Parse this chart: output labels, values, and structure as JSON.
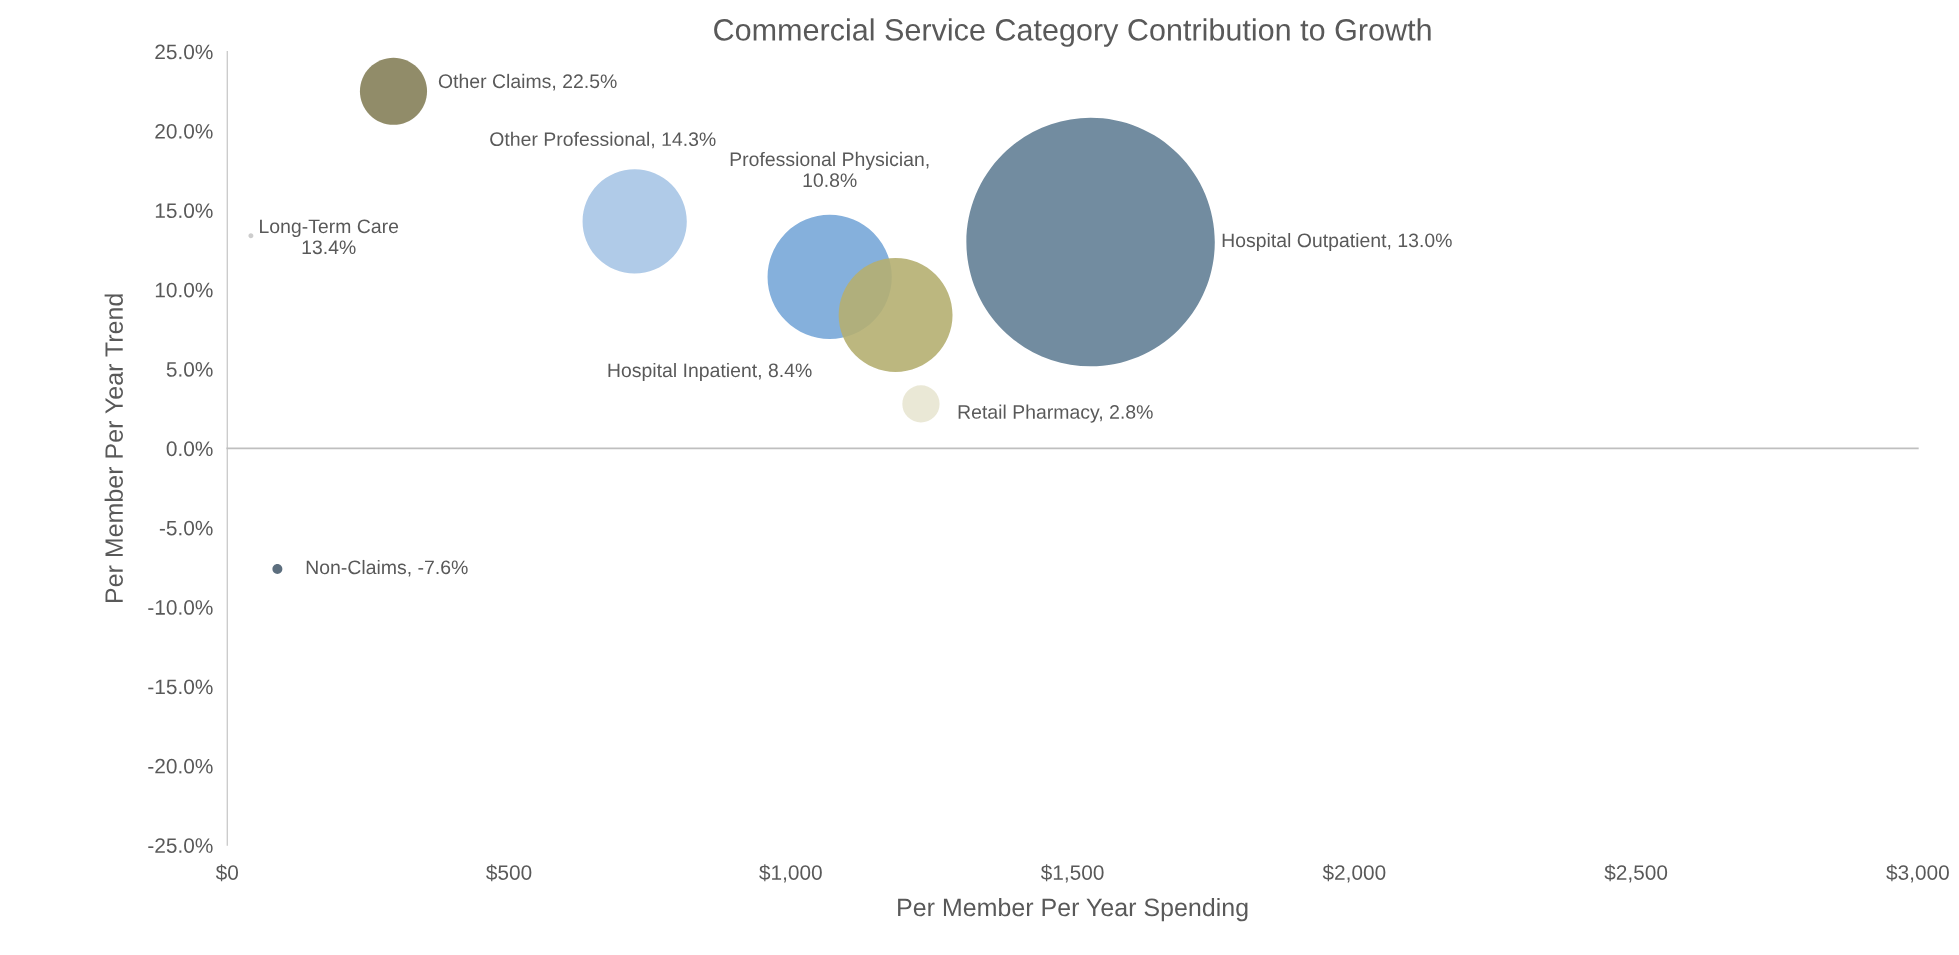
{
  "chart_data": {
    "type": "bubble",
    "title": "Commercial Service Category Contribution to Growth",
    "xlabel": "Per Member Per Year Spending",
    "ylabel": "Per Member Per Year Trend",
    "x": [
      295,
      723,
      42,
      1069,
      1186,
      1532,
      1231,
      89
    ],
    "values": [
      22.5,
      14.3,
      13.4,
      10.8,
      8.4,
      13.0,
      2.8,
      -7.6
    ],
    "sizes": [
      0.073,
      0.176,
      0.0004,
      0.25,
      0.21,
      1,
      0.0225,
      0.0016
    ],
    "colors": [
      "#857f59",
      "#a7c5e6",
      "#c8c8c8",
      "#78a7d8",
      "#b5af71",
      "#637f96",
      "#e8e6d2",
      "#4a5e70"
    ],
    "value_labels": [
      "Other Claims, 22.5%",
      "Other Professional, 14.3%",
      "Long-Term Care\n13.4%",
      "Professional Physician,\n10.8%",
      "Hospital Inpatient, 8.4%",
      "Hospital Outpatient, 13.0%",
      "Retail Pharmacy, 2.8%",
      "Non-Claims, -7.6%"
    ],
    "xlim": [
      0,
      3000
    ],
    "xticks": [
      {
        "value": 0,
        "label": "$0"
      },
      {
        "value": 500,
        "label": "$500"
      },
      {
        "value": 1000,
        "label": "$1,000"
      },
      {
        "value": 1500,
        "label": "$1,500"
      },
      {
        "value": 2000,
        "label": "$2,000"
      },
      {
        "value": 2500,
        "label": "$2,500"
      },
      {
        "value": 3000,
        "label": "$3,000"
      }
    ],
    "ylim": [
      -25,
      25
    ],
    "yticks": [
      {
        "value": -25,
        "label": "-25.0%"
      },
      {
        "value": -20,
        "label": "-20.0%"
      },
      {
        "value": -15,
        "label": "-15.0%"
      },
      {
        "value": -10,
        "label": "-10.0%"
      },
      {
        "value": -5,
        "label": "-5.0%"
      },
      {
        "value": 0,
        "label": "0.0%"
      },
      {
        "value": 5,
        "label": "5.0%"
      },
      {
        "value": 10,
        "label": "10.0%"
      },
      {
        "value": 15,
        "label": "15.0%"
      },
      {
        "value": 20,
        "label": "20.0%"
      },
      {
        "value": 25,
        "label": "25.0%"
      }
    ],
    "ref_lines": [
      {
        "axis": "y",
        "value": 0,
        "color": "#bfbfbf"
      }
    ],
    "grid": false,
    "legend": false
  }
}
